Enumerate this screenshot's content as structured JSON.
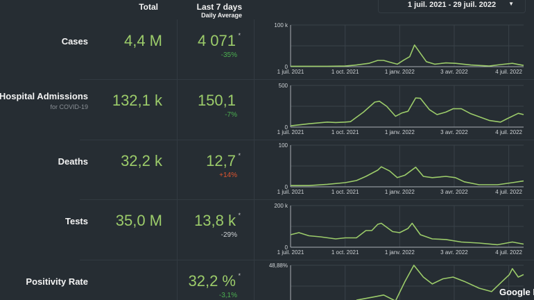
{
  "header": {
    "total": "Total",
    "last7": "Last 7 days",
    "daily_avg": "Daily Average"
  },
  "date_range": {
    "value": "1 juil. 2021 - 29 juil. 2022",
    "icon": "caret-down-icon"
  },
  "accent": "#9ccc6a",
  "rows": [
    {
      "label": "Cases",
      "sub": "",
      "total": "4,4 M",
      "avg": "4 071",
      "star": "*",
      "change": "-35%",
      "change_color": "#4caf50"
    },
    {
      "label": "Hospital Admissions",
      "sub": "for COVID-19",
      "total": "132,1 k",
      "avg": "150,1",
      "star": "",
      "change": "-7%",
      "change_color": "#4caf50"
    },
    {
      "label": "Deaths",
      "sub": "",
      "total": "32,2 k",
      "avg": "12,7",
      "star": "*",
      "change": "+14%",
      "change_color": "#e0552f"
    },
    {
      "label": "Tests",
      "sub": "",
      "total": "35,0 M",
      "avg": "13,8 k",
      "star": "*",
      "change": "-29%",
      "change_color": "#cfd3d6"
    },
    {
      "label": "Positivity Rate",
      "sub": "",
      "total": "",
      "avg": "32,2 %",
      "star": "*",
      "change": "-3,1%",
      "change_color": "#4caf50"
    }
  ],
  "chart_data": [
    {
      "type": "line",
      "ylim": [
        0,
        100000
      ],
      "ytick_labels": [
        "0",
        "100 k"
      ],
      "xlim": [
        "2021-07-01",
        "2022-07-29"
      ],
      "xtick_labels": [
        "1 juil. 2021",
        "1 oct. 2021",
        "1 janv. 2022",
        "3 avr. 2022",
        "4 juil. 2022"
      ],
      "grid": true,
      "points": [
        [
          "2021-07-01",
          1000
        ],
        [
          "2021-08-01",
          1000
        ],
        [
          "2021-09-01",
          1000
        ],
        [
          "2021-10-01",
          1500
        ],
        [
          "2021-10-20",
          4000
        ],
        [
          "2021-11-10",
          8000
        ],
        [
          "2021-11-25",
          15000
        ],
        [
          "2021-12-05",
          15000
        ],
        [
          "2021-12-20",
          9000
        ],
        [
          "2021-12-28",
          6000
        ],
        [
          "2022-01-08",
          16000
        ],
        [
          "2022-01-18",
          24000
        ],
        [
          "2022-01-26",
          52000
        ],
        [
          "2022-02-05",
          32000
        ],
        [
          "2022-02-15",
          12000
        ],
        [
          "2022-03-01",
          6000
        ],
        [
          "2022-03-20",
          9000
        ],
        [
          "2022-04-05",
          8000
        ],
        [
          "2022-05-01",
          4000
        ],
        [
          "2022-06-01",
          1500
        ],
        [
          "2022-06-20",
          5000
        ],
        [
          "2022-07-10",
          8000
        ],
        [
          "2022-07-29",
          3000
        ]
      ]
    },
    {
      "type": "line",
      "ylim": [
        0,
        500
      ],
      "ytick_labels": [
        "0",
        "500"
      ],
      "xlim": [
        "2021-07-01",
        "2022-07-29"
      ],
      "xtick_labels": [
        "1 juil. 2021",
        "1 oct. 2021",
        "1 janv. 2022",
        "3 avr. 2022",
        "4 juil. 2022"
      ],
      "grid": true,
      "points": [
        [
          "2021-07-01",
          15
        ],
        [
          "2021-08-01",
          40
        ],
        [
          "2021-09-01",
          60
        ],
        [
          "2021-09-15",
          55
        ],
        [
          "2021-10-01",
          60
        ],
        [
          "2021-10-10",
          65
        ],
        [
          "2021-11-01",
          180
        ],
        [
          "2021-11-20",
          300
        ],
        [
          "2021-11-28",
          310
        ],
        [
          "2021-12-10",
          250
        ],
        [
          "2021-12-25",
          130
        ],
        [
          "2022-01-05",
          170
        ],
        [
          "2022-01-15",
          190
        ],
        [
          "2022-01-28",
          350
        ],
        [
          "2022-02-05",
          345
        ],
        [
          "2022-02-20",
          210
        ],
        [
          "2022-03-05",
          150
        ],
        [
          "2022-03-20",
          180
        ],
        [
          "2022-04-01",
          220
        ],
        [
          "2022-04-15",
          220
        ],
        [
          "2022-05-01",
          160
        ],
        [
          "2022-06-01",
          80
        ],
        [
          "2022-06-20",
          60
        ],
        [
          "2022-07-01",
          100
        ],
        [
          "2022-07-20",
          165
        ],
        [
          "2022-07-29",
          150
        ]
      ]
    },
    {
      "type": "line",
      "ylim": [
        0,
        100
      ],
      "ytick_labels": [
        "0",
        "100"
      ],
      "xlim": [
        "2021-07-01",
        "2022-07-29"
      ],
      "xtick_labels": [
        "1 juil. 2021",
        "1 oct. 2021",
        "1 janv. 2022",
        "3 avr. 2022",
        "4 juil. 2022"
      ],
      "grid": true,
      "points": [
        [
          "2021-07-01",
          3
        ],
        [
          "2021-08-01",
          3
        ],
        [
          "2021-09-01",
          6
        ],
        [
          "2021-10-01",
          10
        ],
        [
          "2021-10-20",
          15
        ],
        [
          "2021-11-05",
          25
        ],
        [
          "2021-11-25",
          40
        ],
        [
          "2021-12-01",
          48
        ],
        [
          "2021-12-15",
          38
        ],
        [
          "2021-12-28",
          22
        ],
        [
          "2022-01-10",
          28
        ],
        [
          "2022-01-28",
          47
        ],
        [
          "2022-02-10",
          25
        ],
        [
          "2022-02-25",
          22
        ],
        [
          "2022-03-20",
          25
        ],
        [
          "2022-04-05",
          22
        ],
        [
          "2022-04-20",
          12
        ],
        [
          "2022-05-15",
          5
        ],
        [
          "2022-06-15",
          5
        ],
        [
          "2022-07-10",
          10
        ],
        [
          "2022-07-29",
          14
        ]
      ]
    },
    {
      "type": "line",
      "ylim": [
        0,
        200000
      ],
      "ytick_labels": [
        "0",
        "200 k"
      ],
      "xlim": [
        "2021-07-01",
        "2022-07-29"
      ],
      "xtick_labels": [
        "1 juil. 2021",
        "1 oct. 2021",
        "1 janv. 2022",
        "3 avr. 2022",
        "4 juil. 2022"
      ],
      "grid": true,
      "points": [
        [
          "2021-07-01",
          60000
        ],
        [
          "2021-07-15",
          70000
        ],
        [
          "2021-08-01",
          55000
        ],
        [
          "2021-08-20",
          50000
        ],
        [
          "2021-09-15",
          40000
        ],
        [
          "2021-10-01",
          45000
        ],
        [
          "2021-10-20",
          45000
        ],
        [
          "2021-11-05",
          80000
        ],
        [
          "2021-11-15",
          80000
        ],
        [
          "2021-11-25",
          110000
        ],
        [
          "2021-12-01",
          115000
        ],
        [
          "2021-12-20",
          75000
        ],
        [
          "2022-01-01",
          70000
        ],
        [
          "2022-01-15",
          90000
        ],
        [
          "2022-01-22",
          115000
        ],
        [
          "2022-02-05",
          60000
        ],
        [
          "2022-02-25",
          40000
        ],
        [
          "2022-03-20",
          37000
        ],
        [
          "2022-04-15",
          25000
        ],
        [
          "2022-05-15",
          20000
        ],
        [
          "2022-06-15",
          12000
        ],
        [
          "2022-07-10",
          25000
        ],
        [
          "2022-07-29",
          15000
        ]
      ]
    },
    {
      "type": "line",
      "ylim": [
        0,
        48.88
      ],
      "ytick_labels": [
        "48,88%"
      ],
      "xlim": [
        "2021-07-01",
        "2022-07-29"
      ],
      "grid": true,
      "points": [
        [
          "2021-10-20",
          8
        ],
        [
          "2021-11-20",
          12
        ],
        [
          "2021-12-05",
          14
        ],
        [
          "2021-12-25",
          7
        ],
        [
          "2022-01-10",
          30
        ],
        [
          "2022-01-25",
          48.88
        ],
        [
          "2022-02-10",
          35
        ],
        [
          "2022-02-25",
          27
        ],
        [
          "2022-03-15",
          33
        ],
        [
          "2022-04-01",
          35
        ],
        [
          "2022-04-20",
          30
        ],
        [
          "2022-05-15",
          22
        ],
        [
          "2022-06-05",
          18
        ],
        [
          "2022-06-20",
          28
        ],
        [
          "2022-07-05",
          38
        ],
        [
          "2022-07-10",
          45
        ],
        [
          "2022-07-20",
          35
        ],
        [
          "2022-07-29",
          38
        ]
      ]
    }
  ],
  "watermark": "Google D"
}
